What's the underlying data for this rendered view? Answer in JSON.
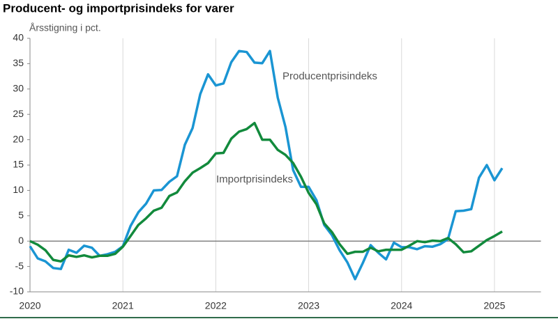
{
  "chart_data": {
    "type": "line",
    "title": "Producent- og importprisindeks for varer",
    "y_label": "Årsstigning i pct.",
    "x": [
      2020,
      2020.083,
      2020.167,
      2020.25,
      2020.333,
      2020.417,
      2020.5,
      2020.583,
      2020.667,
      2020.75,
      2020.833,
      2020.917,
      2021,
      2021.083,
      2021.167,
      2021.25,
      2021.333,
      2021.417,
      2021.5,
      2021.583,
      2021.667,
      2021.75,
      2021.833,
      2021.917,
      2022,
      2022.083,
      2022.167,
      2022.25,
      2022.333,
      2022.417,
      2022.5,
      2022.583,
      2022.667,
      2022.75,
      2022.833,
      2022.917,
      2023,
      2023.083,
      2023.167,
      2023.25,
      2023.333,
      2023.417,
      2023.5,
      2023.583,
      2023.667,
      2023.75,
      2023.833,
      2023.917,
      2024,
      2024.083,
      2024.167,
      2024.25,
      2024.333,
      2024.417,
      2024.5,
      2024.583,
      2024.667,
      2024.75,
      2024.833,
      2024.917,
      2025,
      2025.083
    ],
    "series": [
      {
        "name": "Producentprisindeks",
        "color": "#1a95d3",
        "values": [
          -1,
          -3.4,
          -4,
          -5.3,
          -5.5,
          -1.7,
          -2.3,
          -0.9,
          -1.3,
          -2.9,
          -2.6,
          -2.1,
          -1,
          3,
          5.7,
          7.4,
          10,
          10.1,
          11.7,
          12.8,
          19,
          22.3,
          29,
          32.9,
          30.7,
          31.1,
          35.3,
          37.5,
          37.3,
          35.2,
          35.1,
          37.5,
          28.3,
          22.5,
          14,
          10.7,
          10.7,
          8.1,
          3.2,
          1.2,
          -1.8,
          -4.2,
          -7.5,
          -4.3,
          -0.8,
          -2.3,
          -3.6,
          -0.3,
          -1.2,
          -1.2,
          -1.6,
          -1,
          -1.1,
          -0.6,
          0.4,
          5.9,
          6,
          6.3,
          12.5,
          15,
          12,
          14.4
        ]
      },
      {
        "name": "Importprisindeks",
        "color": "#128a3c",
        "values": [
          0,
          -0.7,
          -1.8,
          -3.7,
          -4,
          -2.8,
          -3.1,
          -2.8,
          -3.2,
          -2.9,
          -2.9,
          -2.5,
          -1.1,
          1,
          3.2,
          4.5,
          6,
          6.6,
          8.9,
          9.6,
          11.8,
          13.5,
          14.4,
          15.4,
          17.3,
          17.4,
          20.2,
          21.6,
          22.1,
          23.3,
          20,
          20,
          18,
          17,
          15.4,
          12.7,
          9.5,
          7.3,
          3.5,
          1.8,
          -0.6,
          -2.5,
          -2.1,
          -2.1,
          -1.3,
          -2,
          -1.7,
          -1.7,
          -1.7,
          -0.9,
          0,
          -0.2,
          0.1,
          0,
          0.6,
          -0.6,
          -2.2,
          -2,
          -0.9,
          0.2,
          1,
          1.9
        ]
      }
    ],
    "xlim": [
      2020,
      2025.5
    ],
    "xticks": [
      2020,
      2021,
      2022,
      2023,
      2024,
      2025
    ],
    "ylim": [
      -10,
      40
    ],
    "yticks": [
      -10,
      -5,
      0,
      5,
      10,
      15,
      20,
      25,
      30,
      35,
      40
    ],
    "grid": "x"
  }
}
